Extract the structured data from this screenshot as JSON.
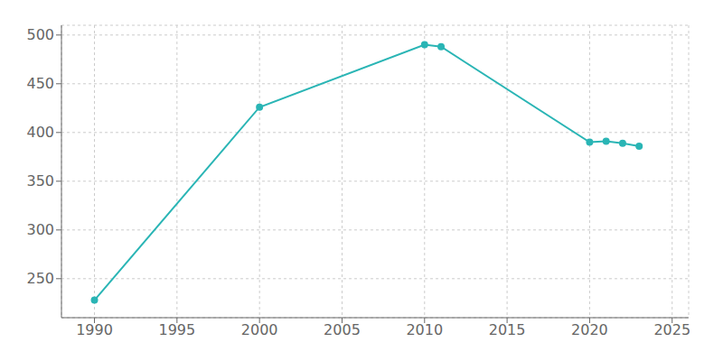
{
  "chart_data": {
    "type": "line",
    "x": [
      1990,
      2000,
      2010,
      2011,
      2020,
      2021,
      2022,
      2023
    ],
    "values": [
      228,
      426,
      490,
      488,
      390,
      391,
      389,
      386
    ],
    "color": "#2ab5b5",
    "marker": "circle",
    "xlim": [
      1988,
      2026
    ],
    "ylim": [
      210,
      510
    ],
    "xticks": [
      1990,
      1995,
      2000,
      2005,
      2010,
      2015,
      2020,
      2025
    ],
    "yticks": [
      250,
      300,
      350,
      400,
      450,
      500
    ],
    "grid": true
  }
}
